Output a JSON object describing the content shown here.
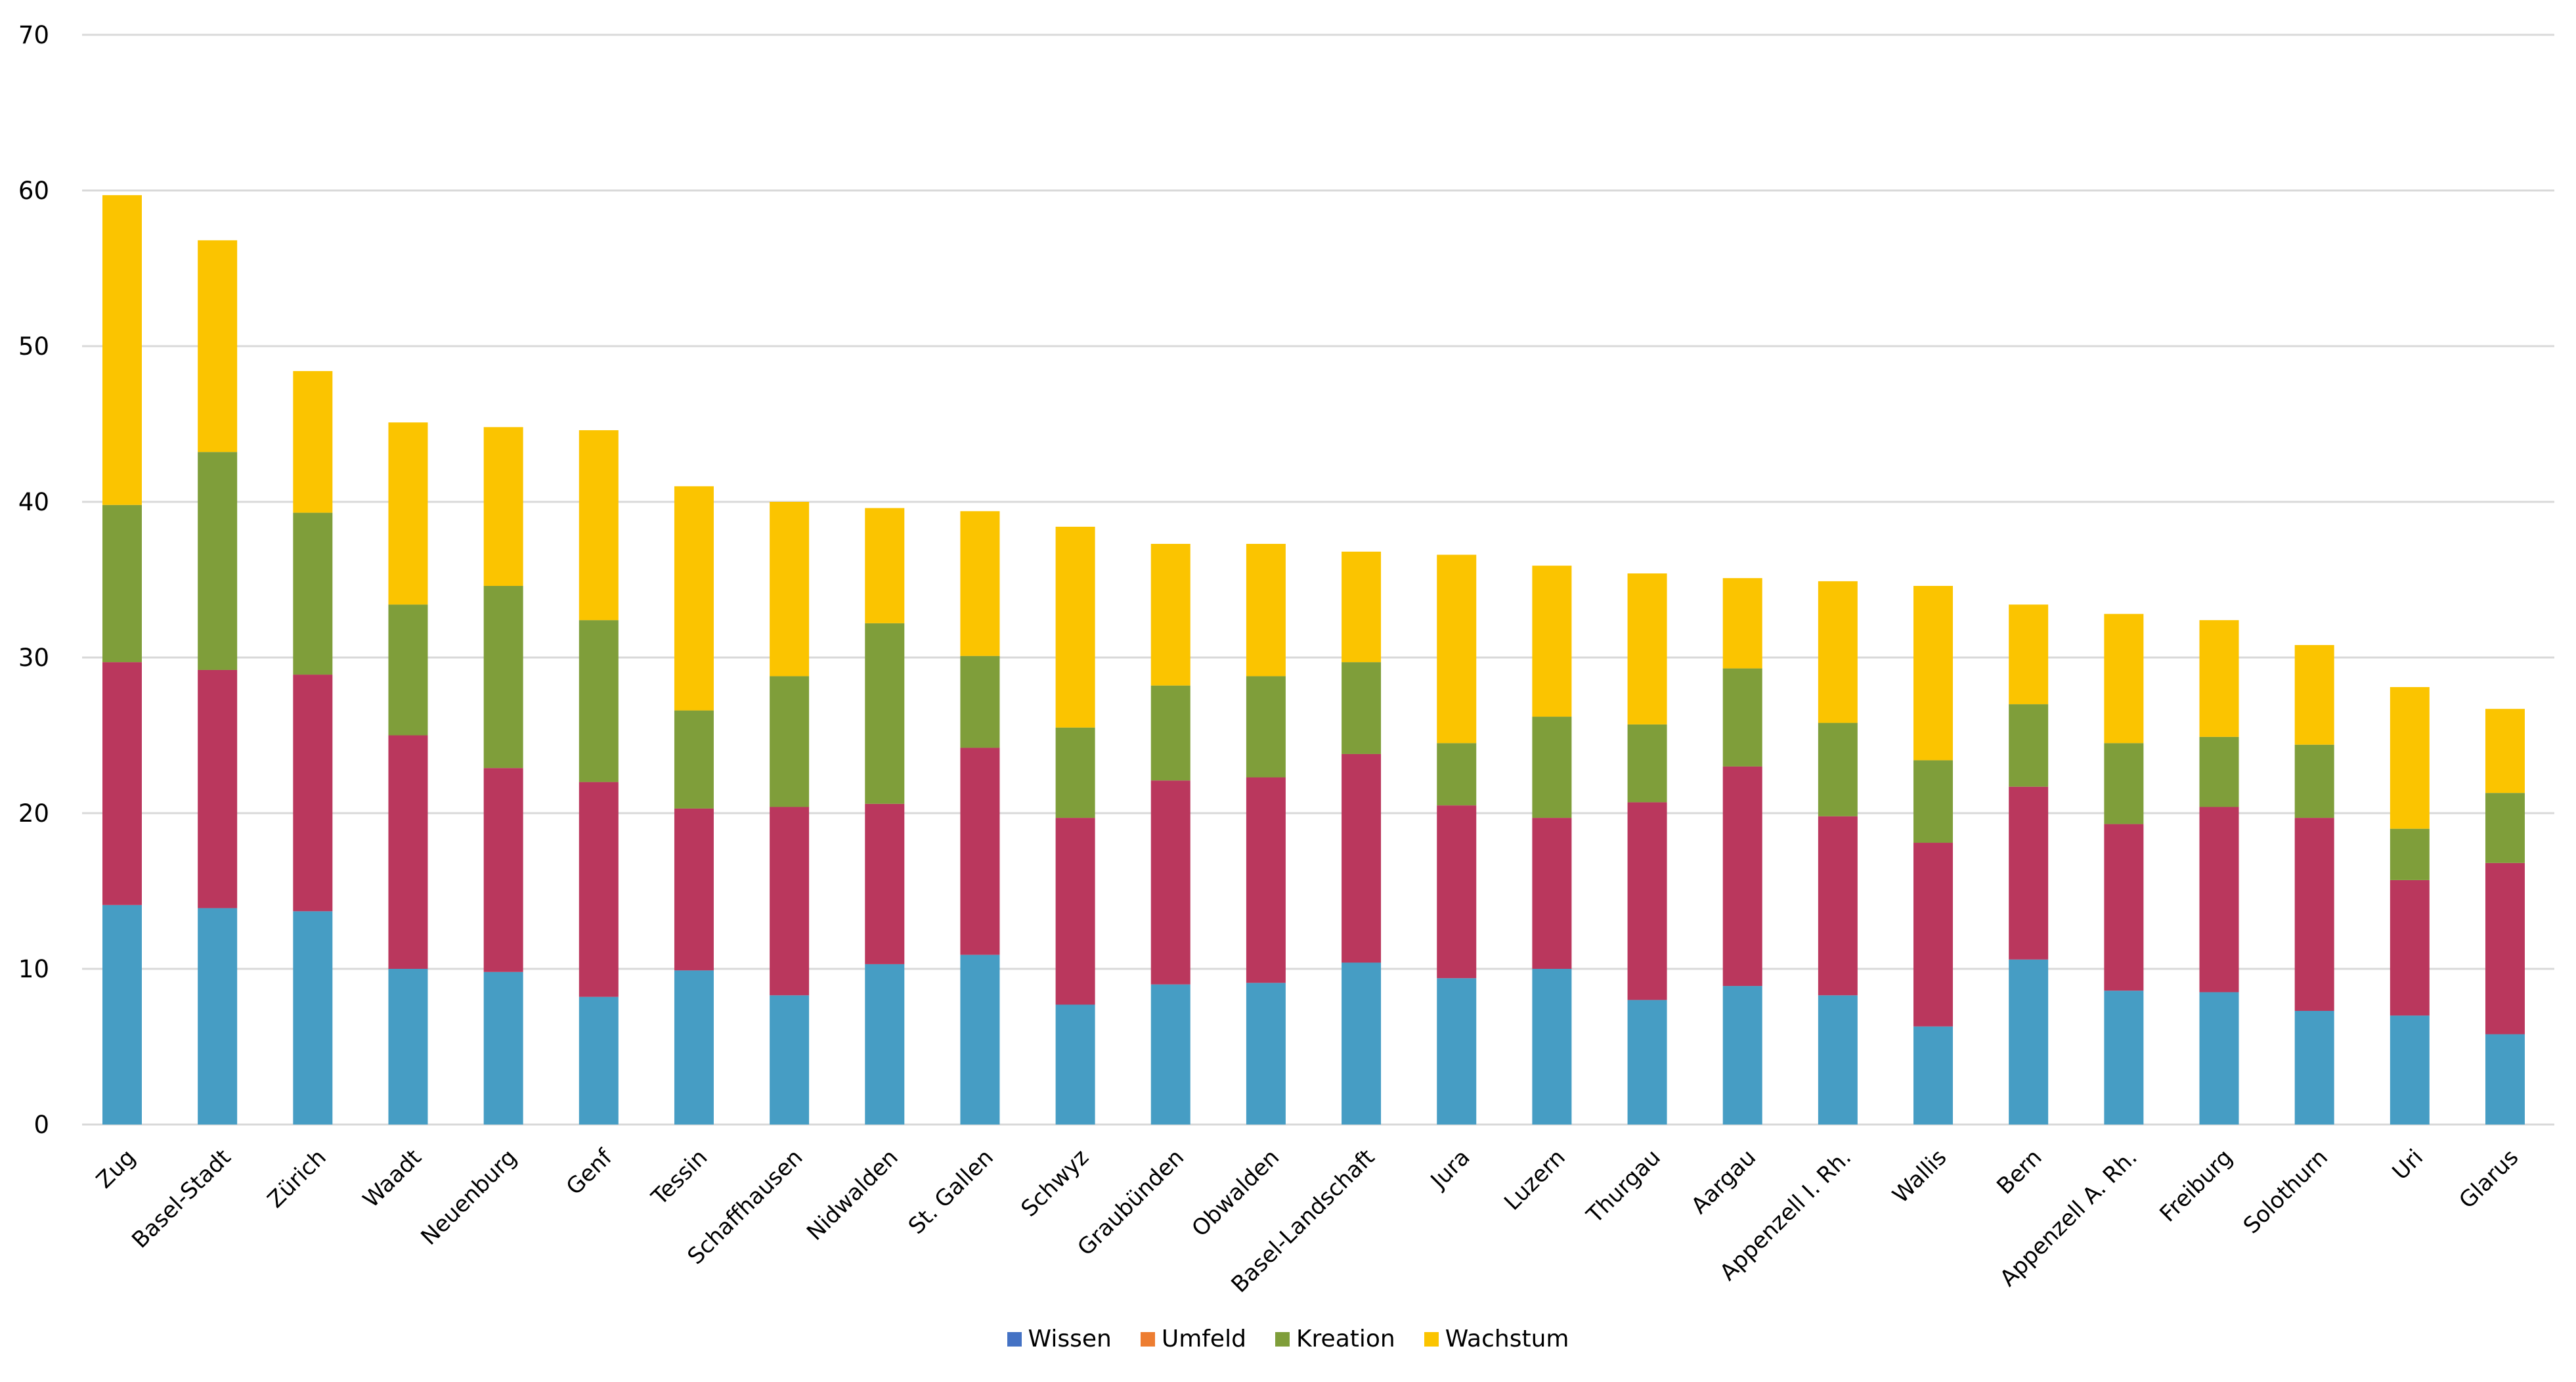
{
  "chart_data": {
    "type": "bar",
    "stacked": true,
    "title": "",
    "xlabel": "",
    "ylabel": "",
    "ylim": [
      0,
      70
    ],
    "yticks": [
      0,
      10,
      20,
      30,
      40,
      50,
      60,
      70
    ],
    "grid": true,
    "legend_position": "bottom",
    "categories": [
      "Zug",
      "Basel-Stadt",
      "Zürich",
      "Waadt",
      "Neuenburg",
      "Genf",
      "Tessin",
      "Schaffhausen",
      "Nidwalden",
      "St. Gallen",
      "Schwyz",
      "Graubünden",
      "Obwalden",
      "Basel-Landschaft",
      "Jura",
      "Luzern",
      "Thurgau",
      "Aargau",
      "Appenzell I. Rh.",
      "Wallis",
      "Bern",
      "Appenzell A. Rh.",
      "Freiburg",
      "Solothurn",
      "Uri",
      "Glarus"
    ],
    "series": [
      {
        "name": "Wissen",
        "legend_color": "#4472C4",
        "bar_color": "#469DC4",
        "values": [
          14.1,
          13.9,
          13.7,
          10.0,
          9.8,
          8.2,
          9.9,
          8.3,
          10.3,
          10.9,
          7.7,
          9.0,
          9.1,
          10.4,
          9.4,
          10.0,
          8.0,
          8.9,
          8.3,
          6.3,
          10.6,
          8.6,
          8.5,
          7.3,
          7.0,
          5.8
        ]
      },
      {
        "name": "Umfeld",
        "legend_color": "#ED7D31",
        "bar_color": "#BA375D",
        "values": [
          15.6,
          15.3,
          15.2,
          15.0,
          13.1,
          13.8,
          10.4,
          12.1,
          10.3,
          13.3,
          12.0,
          13.1,
          13.2,
          13.4,
          11.1,
          9.7,
          12.7,
          14.1,
          11.5,
          11.8,
          11.1,
          10.7,
          11.9,
          12.4,
          8.7,
          11.0
        ]
      },
      {
        "name": "Kreation",
        "legend_color": "#7F9E3A",
        "bar_color": "#7F9E3A",
        "values": [
          10.1,
          14.0,
          10.4,
          8.4,
          11.7,
          10.4,
          6.3,
          8.4,
          11.6,
          5.9,
          5.8,
          6.1,
          6.5,
          5.9,
          4.0,
          6.5,
          5.0,
          6.3,
          6.0,
          5.3,
          5.3,
          5.2,
          4.5,
          4.7,
          3.3,
          4.5
        ]
      },
      {
        "name": "Wachstum",
        "legend_color": "#FBC400",
        "bar_color": "#FBC400",
        "values": [
          19.9,
          13.6,
          9.1,
          11.7,
          10.2,
          12.2,
          14.4,
          11.2,
          7.4,
          9.3,
          12.9,
          9.1,
          8.5,
          7.1,
          12.1,
          9.7,
          9.7,
          5.8,
          9.1,
          11.2,
          6.4,
          8.3,
          7.5,
          6.4,
          9.1,
          5.4
        ]
      }
    ],
    "gridline_color": "#D9D9D9"
  }
}
